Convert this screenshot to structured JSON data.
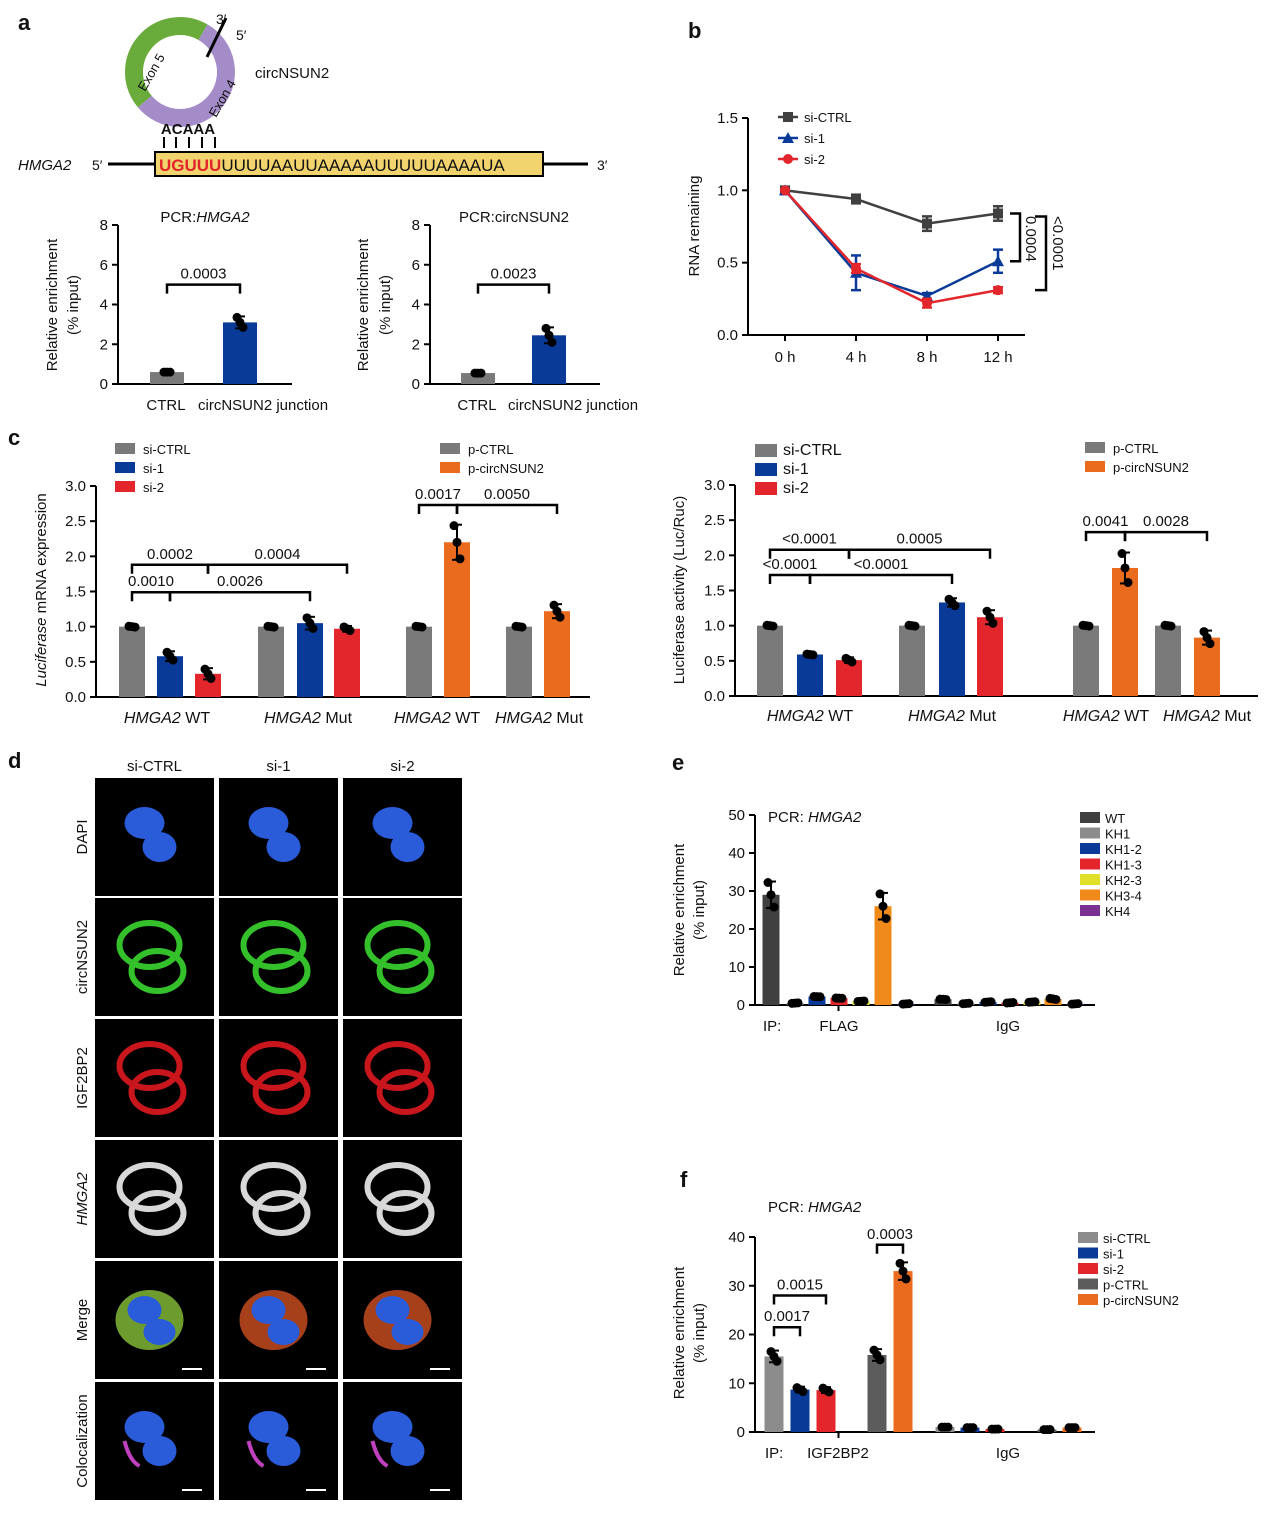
{
  "panel_labels": [
    "a",
    "b",
    "c",
    "d",
    "e",
    "f"
  ],
  "schematic": {
    "circ_name": "circNSUN2",
    "junction_3": "3′",
    "junction_5": "5′",
    "exon5": "Exon 5",
    "exon4": "Exon 4",
    "circ_motif": "ACAAA",
    "gene": "HMGA2",
    "gene_5": "5′",
    "gene_3": "3′",
    "seq_match": "UGUUU",
    "seq_rest": "UUUUAAUUAAAAAUUUUUAAAAUA",
    "colors": {
      "exon5": "#6aac3c",
      "exon4": "#a48cc8",
      "motif": "#e0262a",
      "box": "#f2d46e"
    }
  },
  "chart_data": [
    {
      "id": "a1",
      "type": "bar",
      "title": [
        "PCR:",
        "HMGA2"
      ],
      "ylabel": [
        "Relative enrichment",
        "(% input)"
      ],
      "ylim": [
        0,
        8
      ],
      "yticks": [
        "0",
        "2",
        "4",
        "6",
        "8"
      ],
      "categories": [
        "CTRL",
        "circNSUN2 junction"
      ],
      "values": [
        0.6,
        3.1
      ],
      "errors": [
        0.05,
        0.3
      ],
      "colors": [
        "#7a7a7a",
        "#0a3a98"
      ],
      "brackets": [
        {
          "label": "0.0003",
          "from": 0,
          "to": 1,
          "level": 5.0
        }
      ]
    },
    {
      "id": "a2",
      "type": "bar",
      "title": [
        "PCR:circNSUN2",
        ""
      ],
      "ylabel": [
        "Relative enrichment",
        "(% input)"
      ],
      "ylim": [
        0,
        8
      ],
      "yticks": [
        "0",
        "2",
        "4",
        "6",
        "8"
      ],
      "categories": [
        "CTRL",
        "circNSUN2 junction"
      ],
      "values": [
        0.55,
        2.45
      ],
      "errors": [
        0.05,
        0.4
      ],
      "colors": [
        "#7a7a7a",
        "#0a3a98"
      ],
      "brackets": [
        {
          "label": "0.0023",
          "from": 0,
          "to": 1,
          "level": 5.0
        }
      ]
    },
    {
      "id": "b",
      "type": "line",
      "ylabel": "RNA remaining",
      "ylim": [
        0,
        1.5
      ],
      "yticks": [
        "0.0",
        "0.5",
        "1.0",
        "1.5"
      ],
      "x": [
        "0 h",
        "4 h",
        "8 h",
        "12 h"
      ],
      "series": [
        {
          "name": "si-CTRL",
          "color": "#404040",
          "marker": "square",
          "values": [
            1.0,
            0.94,
            0.77,
            0.84
          ],
          "errors": [
            0,
            0.03,
            0.05,
            0.05
          ]
        },
        {
          "name": "si-1",
          "color": "#0a3a98",
          "marker": "triangle",
          "values": [
            1.0,
            0.43,
            0.27,
            0.51
          ],
          "errors": [
            0,
            0.12,
            0.02,
            0.08
          ]
        },
        {
          "name": "si-2",
          "color": "#e3262b",
          "marker": "circle",
          "values": [
            1.0,
            0.46,
            0.22,
            0.31
          ],
          "errors": [
            0,
            0.03,
            0.03,
            0.02
          ]
        }
      ],
      "annotations": [
        {
          "label": "0.0004",
          "between": [
            "si-CTRL",
            "si-1"
          ]
        },
        {
          "label": "<0.0001",
          "between": [
            "si-CTRL",
            "si-2"
          ]
        }
      ]
    },
    {
      "id": "c1",
      "type": "bar",
      "ylabel": [
        "Luciferase",
        " mRNA expression"
      ],
      "ylim": [
        0,
        3
      ],
      "yticks": [
        "0.0",
        "0.5",
        "1.0",
        "1.5",
        "2.0",
        "2.5",
        "3.0"
      ],
      "values": [
        1.0,
        0.58,
        0.33,
        1.0,
        1.05,
        0.97,
        1.0,
        2.2,
        1.0,
        1.22
      ],
      "errors": [
        0.02,
        0.07,
        0.08,
        0.02,
        0.09,
        0.04,
        0.02,
        0.25,
        0.02,
        0.1
      ],
      "colors": [
        "#7a7a7a",
        "#0a3a98",
        "#e3262b",
        "#7a7a7a",
        "#0a3a98",
        "#e3262b",
        "#7a7a7a",
        "#ea6a1e",
        "#7a7a7a",
        "#ea6a1e"
      ],
      "groups": [
        {
          "gene": "HMGA2",
          "suffix": " WT",
          "bars": [
            0,
            1,
            2
          ]
        },
        {
          "gene": "HMGA2",
          "suffix": " Mut",
          "bars": [
            3,
            4,
            5
          ]
        },
        {
          "gene": "HMGA2",
          "suffix": " WT",
          "bars": [
            6,
            7
          ]
        },
        {
          "gene": "HMGA2",
          "suffix": " Mut",
          "bars": [
            8,
            9
          ]
        }
      ],
      "legends": [
        [
          {
            "name": "si-CTRL",
            "color": "#7a7a7a"
          },
          {
            "name": "si-1",
            "color": "#0a3a98"
          },
          {
            "name": "si-2",
            "color": "#e3262b"
          }
        ],
        [
          {
            "name": "p-CTRL",
            "color": "#7a7a7a"
          },
          {
            "name": "p-circNSUN2",
            "color": "#ea6a1e"
          }
        ]
      ],
      "brackets": [
        {
          "label": "0.0002",
          "from": 0,
          "to": 2,
          "level": 1.88
        },
        {
          "label": "0.0004",
          "from": 2,
          "to": 5,
          "level": 1.88
        },
        {
          "label": "0.0010",
          "from": 0,
          "to": 1,
          "level": 1.49
        },
        {
          "label": "0.0026",
          "from": 1,
          "to": 4,
          "level": 1.49
        },
        {
          "label": "0.0017",
          "from": 6,
          "to": 7,
          "level": 2.73
        },
        {
          "label": "0.0050",
          "from": 7,
          "to": 9,
          "level": 2.73
        }
      ]
    },
    {
      "id": "c2",
      "type": "bar",
      "ylabel": [
        "",
        "Luciferase activity (Luc/Ruc)"
      ],
      "ylim": [
        0,
        3
      ],
      "yticks": [
        "0.0",
        "0.5",
        "1.0",
        "1.5",
        "2.0",
        "2.5",
        "3.0"
      ],
      "values": [
        1.0,
        0.59,
        0.51,
        1.0,
        1.33,
        1.12,
        1.0,
        1.82,
        1.0,
        0.83
      ],
      "errors": [
        0.02,
        0.02,
        0.04,
        0.02,
        0.06,
        0.1,
        0.02,
        0.22,
        0.02,
        0.1
      ],
      "colors": [
        "#7a7a7a",
        "#0a3a98",
        "#e3262b",
        "#7a7a7a",
        "#0a3a98",
        "#e3262b",
        "#7a7a7a",
        "#ea6a1e",
        "#7a7a7a",
        "#ea6a1e"
      ],
      "groups": [
        {
          "gene": "HMGA2",
          "suffix": " WT",
          "bars": [
            0,
            1,
            2
          ]
        },
        {
          "gene": "HMGA2",
          "suffix": " Mut",
          "bars": [
            3,
            4,
            5
          ]
        },
        {
          "gene": "HMGA2",
          "suffix": " WT",
          "bars": [
            6,
            7
          ]
        },
        {
          "gene": "HMGA2",
          "suffix": " Mut",
          "bars": [
            8,
            9
          ]
        }
      ],
      "legends": [
        [
          {
            "name": "si-CTRL",
            "color": "#7a7a7a"
          },
          {
            "name": "si-1",
            "color": "#0a3a98"
          },
          {
            "name": "si-2",
            "color": "#e3262b"
          }
        ],
        [
          {
            "name": "p-CTRL",
            "color": "#7a7a7a"
          },
          {
            "name": "p-circNSUN2",
            "color": "#ea6a1e"
          }
        ]
      ],
      "brackets": [
        {
          "label": "<0.0001",
          "from": 0,
          "to": 2,
          "level": 2.08
        },
        {
          "label": "0.0005",
          "from": 2,
          "to": 5,
          "level": 2.08
        },
        {
          "label": "<0.0001",
          "from": 0,
          "to": 1,
          "level": 1.72
        },
        {
          "label": "<0.0001",
          "from": 1,
          "to": 4,
          "level": 1.72
        },
        {
          "label": "0.0041",
          "from": 6,
          "to": 7,
          "level": 2.33
        },
        {
          "label": "0.0028",
          "from": 7,
          "to": 9,
          "level": 2.33
        }
      ]
    },
    {
      "id": "e",
      "type": "bar",
      "title": [
        "PCR: ",
        "HMGA2"
      ],
      "ylabel": [
        "Relative enrichment",
        "(% input)"
      ],
      "ylim": [
        0,
        50
      ],
      "yticks": [
        "0",
        "10",
        "20",
        "30",
        "40",
        "50"
      ],
      "values": [
        29,
        0.5,
        2.2,
        1.8,
        1.0,
        26,
        0.3,
        1.5,
        0.4,
        0.8,
        0.6,
        0.8,
        1.6,
        0.3
      ],
      "errors": [
        3.5,
        0.2,
        0.3,
        0.3,
        0.2,
        3.5,
        0.2,
        0.3,
        0.2,
        0.2,
        0.2,
        0.2,
        0.4,
        0.2
      ],
      "colors": [
        "#404040",
        "#8c8c8c",
        "#0a3a98",
        "#e3262b",
        "#e0df2a",
        "#f08a1a",
        "#7a3192",
        "#404040",
        "#8c8c8c",
        "#0a3a98",
        "#e3262b",
        "#e0df2a",
        "#f08a1a",
        "#7a3192"
      ],
      "ip_label": "IP:",
      "group_labels": [
        "FLAG",
        "IgG"
      ],
      "legends": [
        [
          {
            "name": "WT",
            "color": "#404040"
          },
          {
            "name": "KH1",
            "color": "#8c8c8c"
          },
          {
            "name": "KH1-2",
            "color": "#0a3a98"
          },
          {
            "name": "KH1-3",
            "color": "#e3262b"
          },
          {
            "name": "KH2-3",
            "color": "#e0df2a"
          },
          {
            "name": "KH3-4",
            "color": "#f08a1a"
          },
          {
            "name": "KH4",
            "color": "#7a3192"
          }
        ]
      ],
      "brackets": []
    },
    {
      "id": "f",
      "type": "bar",
      "title": [
        "PCR: ",
        "HMGA2"
      ],
      "ylabel": [
        "Relative enrichment",
        "(% input)"
      ],
      "ylim": [
        0,
        40
      ],
      "yticks": [
        "0",
        "10",
        "20",
        "30",
        "40"
      ],
      "values": [
        15.5,
        8.7,
        8.6,
        15.8,
        33,
        1.0,
        0.9,
        0.6,
        0.5,
        0.9
      ],
      "errors": [
        1.2,
        0.6,
        0.6,
        1.2,
        1.8,
        0.2,
        0.2,
        0.2,
        0.2,
        0.2
      ],
      "colors": [
        "#8c8c8c",
        "#0a3a98",
        "#e3262b",
        "#5c5c5c",
        "#ea6a1e",
        "#8c8c8c",
        "#0a3a98",
        "#e3262b",
        "#5c5c5c",
        "#ea6a1e"
      ],
      "ip_label": "IP:",
      "group_labels": [
        "IGF2BP2",
        "IgG"
      ],
      "legends": [
        [
          {
            "name": "si-CTRL",
            "color": "#8c8c8c"
          },
          {
            "name": "si-1",
            "color": "#0a3a98"
          },
          {
            "name": "si-2",
            "color": "#e3262b"
          },
          {
            "name": "p-CTRL",
            "color": "#5c5c5c"
          },
          {
            "name": "p-circNSUN2",
            "color": "#ea6a1e"
          }
        ]
      ],
      "brackets": [
        {
          "label": "0.0017",
          "from": 0,
          "to": 1,
          "level": 21.5
        },
        {
          "label": "0.0015",
          "from": 0,
          "to": 2,
          "level": 28
        },
        {
          "label": "0.0003",
          "from": 3,
          "to": 4,
          "level": 38.4
        }
      ]
    }
  ],
  "images": {
    "columns": [
      "si-CTRL",
      "si-1",
      "si-2"
    ],
    "rows": [
      {
        "label": "DAPI",
        "italic": false,
        "colors": [
          "#2a5bd8"
        ]
      },
      {
        "label": "circNSUN2",
        "italic": false,
        "colors": [
          "#34c02a"
        ]
      },
      {
        "label": "IGF2BP2",
        "italic": false,
        "colors": [
          "#c8161c"
        ]
      },
      {
        "label": "HMGA2",
        "italic": true,
        "colors": [
          "#d8d8d8"
        ]
      },
      {
        "label": "Merge",
        "italic": false,
        "colors": [
          "#2a5bd8",
          "#8ac23a",
          "#d05020"
        ]
      },
      {
        "label": "Colocalization",
        "italic": false,
        "colors": [
          "#2a5bd8",
          "#c040c0"
        ]
      }
    ]
  }
}
